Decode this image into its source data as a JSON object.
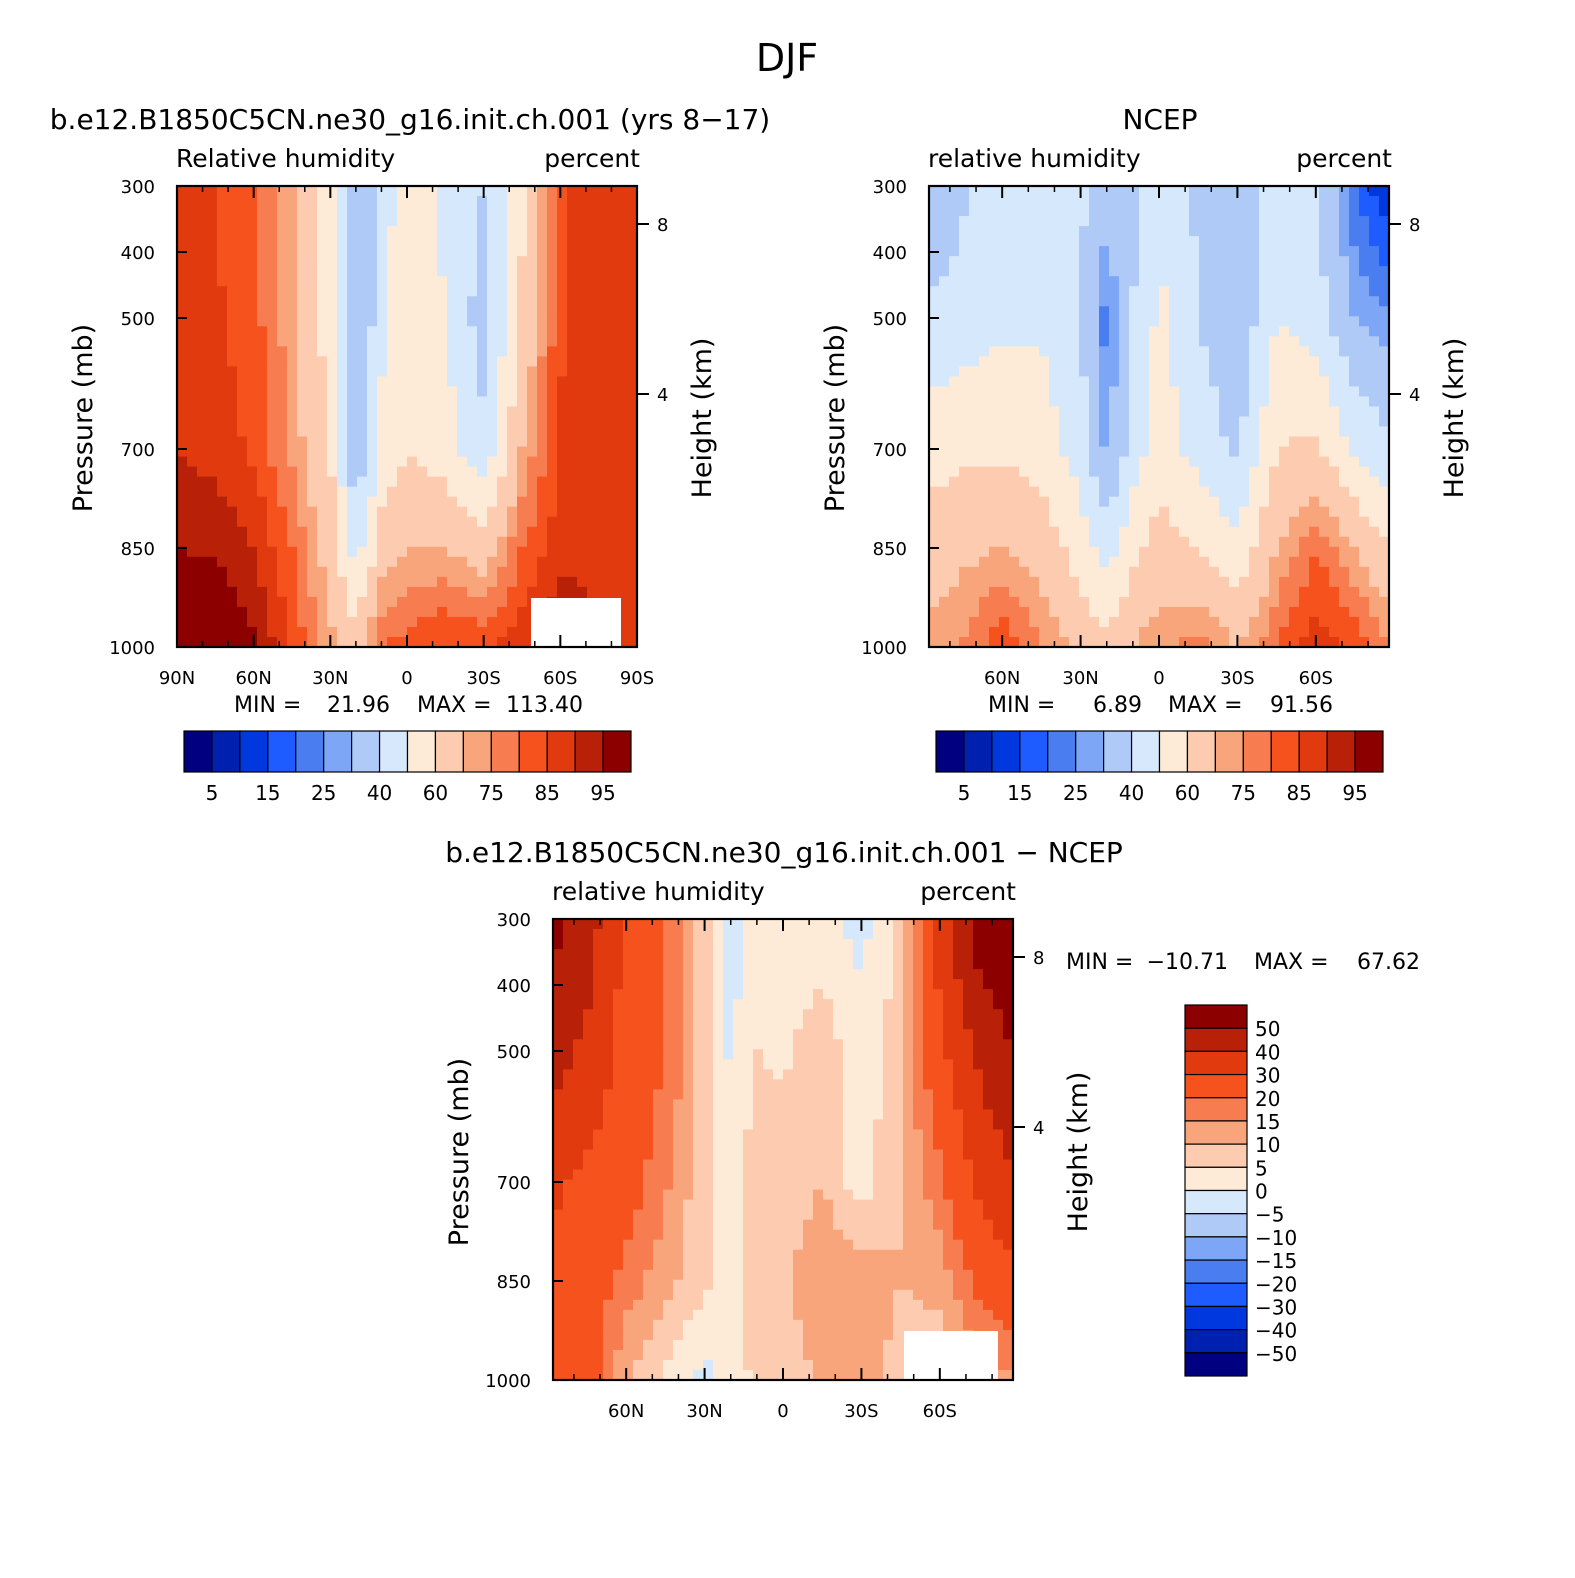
{
  "page_title": "DJF",
  "colors": {
    "abs_scale": [
      "#000080",
      "#0020b0",
      "#0038e0",
      "#1e5cff",
      "#4a7ef0",
      "#7ea6f6",
      "#b0caf8",
      "#d6e8fc",
      "#fdebd8",
      "#fccbb0",
      "#f9a57c",
      "#f77c50",
      "#f5521e",
      "#e03a0e",
      "#b82008",
      "#8c0000"
    ],
    "diff_scale": [
      "#000080",
      "#0020b0",
      "#0038e0",
      "#1e5cff",
      "#4a7ef0",
      "#7ea6f6",
      "#b0caf8",
      "#d6e8fc",
      "#fdebd8",
      "#fccbb0",
      "#f9a57c",
      "#f77c50",
      "#f5521e",
      "#e03a0e",
      "#b82008",
      "#8c0000"
    ]
  },
  "chart_data": [
    {
      "type": "heatmap",
      "title": "b.e12.B1850C5CN.ne30_g16.init.ch.001 (yrs 8−17)",
      "left_label": "Relative humidity",
      "right_label": "percent",
      "ylabel": "Pressure (mb)",
      "ylabel_right": "Height (km)",
      "x_ticks": [
        "90N",
        "60N",
        "30N",
        "0",
        "30S",
        "60S",
        "90S"
      ],
      "y_ticks": [
        "300",
        "400",
        "500",
        "700",
        "850",
        "1000"
      ],
      "y_right_ticks": [
        "8",
        "4"
      ],
      "ylim": [
        1000,
        300
      ],
      "stats": {
        "min_label": "MIN =",
        "min": "21.96",
        "max_label": "MAX =",
        "max": "113.40"
      },
      "colorbar_levels": [
        5,
        10,
        15,
        20,
        25,
        30,
        40,
        50,
        60,
        70,
        75,
        80,
        85,
        90,
        95
      ],
      "colorbar_labels": [
        "5",
        "15",
        "25",
        "40",
        "60",
        "75",
        "85",
        "95"
      ],
      "profile": [
        {
          "lat": 90,
          "v": [
            88,
            88,
            90,
            95,
            100
          ]
        },
        {
          "lat": 75,
          "v": [
            85,
            86,
            88,
            94,
            102
          ]
        },
        {
          "lat": 60,
          "v": [
            80,
            82,
            84,
            90,
            96
          ]
        },
        {
          "lat": 45,
          "v": [
            70,
            72,
            74,
            80,
            84
          ]
        },
        {
          "lat": 30,
          "v": [
            52,
            55,
            60,
            66,
            72
          ]
        },
        {
          "lat": 20,
          "v": [
            30,
            26,
            30,
            45,
            65
          ]
        },
        {
          "lat": 10,
          "v": [
            45,
            48,
            52,
            65,
            80
          ]
        },
        {
          "lat": 0,
          "v": [
            55,
            58,
            60,
            70,
            82
          ]
        },
        {
          "lat": -15,
          "v": [
            48,
            50,
            55,
            70,
            86
          ]
        },
        {
          "lat": -30,
          "v": [
            40,
            35,
            42,
            65,
            84
          ]
        },
        {
          "lat": -45,
          "v": [
            58,
            62,
            70,
            80,
            88
          ]
        },
        {
          "lat": -60,
          "v": [
            84,
            84,
            86,
            88,
            96
          ]
        },
        {
          "lat": -75,
          "v": [
            88,
            88,
            86,
            88,
            90
          ]
        },
        {
          "lat": -90,
          "v": [
            90,
            88,
            86,
            86,
            88
          ]
        }
      ]
    },
    {
      "type": "heatmap",
      "title": "NCEP",
      "left_label": "relative humidity",
      "right_label": "percent",
      "ylabel": "Pressure (mb)",
      "ylabel_right": "Height (km)",
      "x_ticks": [
        "60N",
        "30N",
        "0",
        "30S",
        "60S"
      ],
      "y_ticks": [
        "300",
        "400",
        "500",
        "700",
        "850",
        "1000"
      ],
      "y_right_ticks": [
        "8",
        "4"
      ],
      "ylim": [
        1000,
        300
      ],
      "stats": {
        "min_label": "MIN =",
        "min": "6.89",
        "max_label": "MAX =",
        "max": "91.56"
      },
      "colorbar_levels": [
        5,
        10,
        15,
        20,
        25,
        30,
        40,
        50,
        60,
        70,
        75,
        80,
        85,
        90,
        95
      ],
      "colorbar_labels": [
        "5",
        "15",
        "25",
        "40",
        "60",
        "75",
        "85",
        "95"
      ],
      "profile": [
        {
          "lat": 90,
          "v": [
            28,
            42,
            55,
            65,
            72
          ]
        },
        {
          "lat": 75,
          "v": [
            38,
            45,
            58,
            68,
            76
          ]
        },
        {
          "lat": 60,
          "v": [
            45,
            48,
            58,
            70,
            84
          ]
        },
        {
          "lat": 45,
          "v": [
            45,
            48,
            56,
            66,
            76
          ]
        },
        {
          "lat": 30,
          "v": [
            42,
            40,
            45,
            55,
            68
          ]
        },
        {
          "lat": 20,
          "v": [
            35,
            22,
            28,
            45,
            62
          ]
        },
        {
          "lat": 10,
          "v": [
            38,
            40,
            45,
            58,
            70
          ]
        },
        {
          "lat": 0,
          "v": [
            50,
            52,
            56,
            64,
            74
          ]
        },
        {
          "lat": -15,
          "v": [
            38,
            40,
            46,
            60,
            78
          ]
        },
        {
          "lat": -30,
          "v": [
            35,
            32,
            38,
            52,
            70
          ]
        },
        {
          "lat": -45,
          "v": [
            45,
            50,
            60,
            70,
            80
          ]
        },
        {
          "lat": -60,
          "v": [
            40,
            45,
            62,
            80,
            88
          ]
        },
        {
          "lat": -75,
          "v": [
            20,
            30,
            48,
            70,
            84
          ]
        },
        {
          "lat": -90,
          "v": [
            8,
            25,
            42,
            60,
            74
          ]
        }
      ]
    },
    {
      "type": "heatmap",
      "title": "b.e12.B1850C5CN.ne30_g16.init.ch.001 − NCEP",
      "left_label": "relative humidity",
      "right_label": "percent",
      "ylabel": "Pressure (mb)",
      "ylabel_right": "Height (km)",
      "x_ticks": [
        "60N",
        "30N",
        "0",
        "30S",
        "60S"
      ],
      "y_ticks": [
        "300",
        "400",
        "500",
        "700",
        "850",
        "1000"
      ],
      "y_right_ticks": [
        "8",
        "4"
      ],
      "ylim": [
        1000,
        300
      ],
      "stats": {
        "min_label": "MIN =",
        "min": "−10.71",
        "max_label": "MAX =",
        "max": "67.62"
      },
      "colorbar_levels": [
        -50,
        -40,
        -30,
        -20,
        -15,
        -10,
        -5,
        0,
        5,
        10,
        15,
        20,
        30,
        40,
        50
      ],
      "colorbar_labels": [
        "50",
        "40",
        "30",
        "20",
        "15",
        "10",
        "5",
        "0",
        "−5",
        "−10",
        "−15",
        "−20",
        "−30",
        "−40",
        "−50"
      ],
      "profile": [
        {
          "lat": 90,
          "v": [
            55,
            45,
            32,
            28,
            30
          ]
        },
        {
          "lat": 75,
          "v": [
            45,
            38,
            28,
            24,
            24
          ]
        },
        {
          "lat": 60,
          "v": [
            28,
            26,
            24,
            18,
            10
          ]
        },
        {
          "lat": 45,
          "v": [
            20,
            20,
            16,
            12,
            4
          ]
        },
        {
          "lat": 30,
          "v": [
            6,
            8,
            6,
            6,
            -2
          ]
        },
        {
          "lat": 20,
          "v": [
            -2,
            -1,
            1,
            3,
            2
          ]
        },
        {
          "lat": 10,
          "v": [
            2,
            5,
            9,
            10,
            6
          ]
        },
        {
          "lat": 0,
          "v": [
            1,
            4,
            7,
            9,
            7
          ]
        },
        {
          "lat": -15,
          "v": [
            2,
            8,
            10,
            14,
            11
          ]
        },
        {
          "lat": -30,
          "v": [
            -2,
            2,
            2,
            14,
            12
          ]
        },
        {
          "lat": -45,
          "v": [
            6,
            8,
            10,
            10,
            8
          ]
        },
        {
          "lat": -60,
          "v": [
            35,
            28,
            18,
            12,
            6
          ]
        },
        {
          "lat": -75,
          "v": [
            55,
            42,
            32,
            22,
            12
          ]
        },
        {
          "lat": -90,
          "v": [
            60,
            52,
            40,
            28,
            15
          ]
        }
      ]
    }
  ]
}
